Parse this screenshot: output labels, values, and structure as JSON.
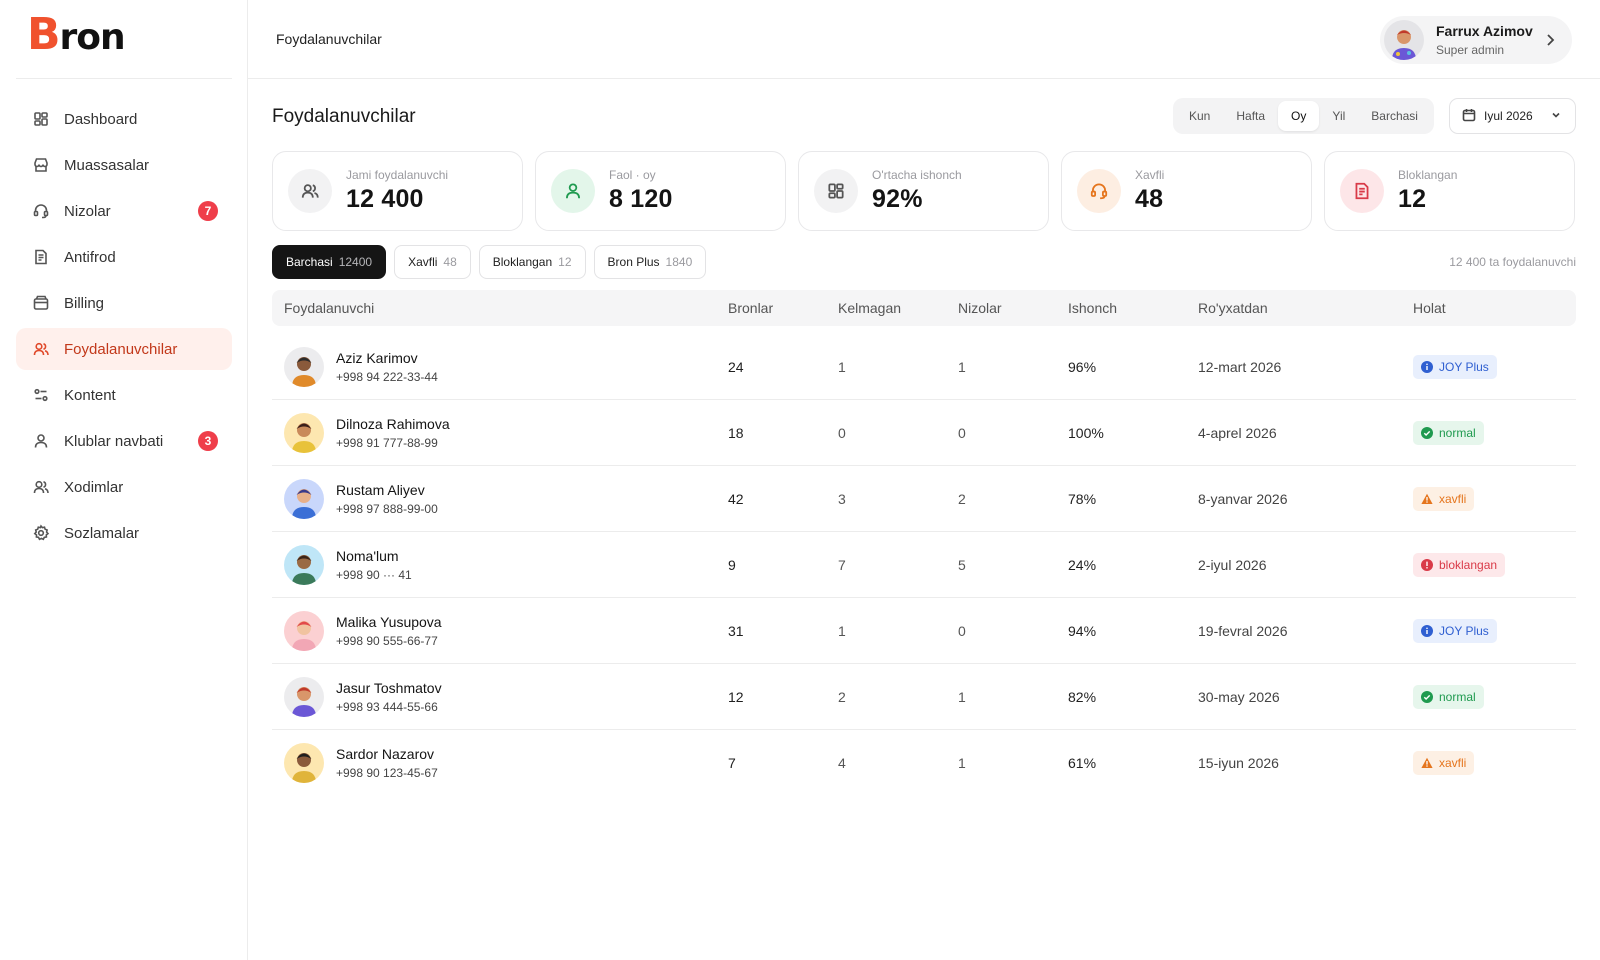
{
  "brand": {
    "logo_text": "ron",
    "logo_initial": "B",
    "accent": "#f0522e"
  },
  "sidebar": {
    "items": [
      {
        "label": "Dashboard",
        "icon": "grid-icon",
        "badge": ""
      },
      {
        "label": "Muassasalar",
        "icon": "store-icon",
        "badge": ""
      },
      {
        "label": "Nizolar",
        "icon": "headset-icon",
        "badge": "7"
      },
      {
        "label": "Antifrod",
        "icon": "document-icon",
        "badge": ""
      },
      {
        "label": "Billing",
        "icon": "wallet-icon",
        "badge": ""
      },
      {
        "label": "Foydalanuvchilar",
        "icon": "users-icon",
        "badge": "",
        "active": true
      },
      {
        "label": "Kontent",
        "icon": "sliders-icon",
        "badge": ""
      },
      {
        "label": "Klublar navbati",
        "icon": "user-icon",
        "badge": "3"
      },
      {
        "label": "Xodimlar",
        "icon": "users-icon",
        "badge": ""
      },
      {
        "label": "Sozlamalar",
        "icon": "gear-icon",
        "badge": ""
      }
    ]
  },
  "header": {
    "title": "Foydalanuvchilar",
    "user": {
      "name": "Farrux Azimov",
      "role": "Super admin"
    }
  },
  "main": {
    "title": "Foydalanuvchilar",
    "periods": [
      "Kun",
      "Hafta",
      "Oy",
      "Yil",
      "Barchasi"
    ],
    "active_period": "Oy",
    "date_label": "Iyul 2026",
    "stats": [
      {
        "label": "Jami foydalanuvchi",
        "value": "12 400",
        "icon": "users-icon",
        "bg": "#f2f2f3",
        "color": "#555555"
      },
      {
        "label": "Faol · oy",
        "value": "8 120",
        "icon": "user-icon",
        "bg": "#e3f6ea",
        "color": "#1f9a4f"
      },
      {
        "label": "O'rtacha ishonch",
        "value": "92%",
        "icon": "grid-icon",
        "bg": "#f2f2f3",
        "color": "#555555"
      },
      {
        "label": "Xavfli",
        "value": "48",
        "icon": "headset-icon",
        "bg": "#fdeee2",
        "color": "#e5751d"
      },
      {
        "label": "Bloklangan",
        "value": "12",
        "icon": "document-icon",
        "bg": "#fde6e8",
        "color": "#d93a48"
      }
    ],
    "filters": [
      {
        "label": "Barchasi",
        "count": "12400",
        "active": true
      },
      {
        "label": "Xavfli",
        "count": "48"
      },
      {
        "label": "Bloklangan",
        "count": "12"
      },
      {
        "label": "Bron Plus",
        "count": "1840"
      }
    ],
    "total_text": "12 400 ta foydalanuvchi",
    "table": {
      "columns": [
        "Foydalanuvchi",
        "Bronlar",
        "Kelmagan",
        "Nizolar",
        "Ishonch",
        "Ro'yxatdan",
        "Holat"
      ],
      "rows": [
        {
          "name": "Aziz Karimov",
          "phone": "+998 94 222-33-44",
          "bookings": "24",
          "no_show": "1",
          "disputes": "1",
          "trust": "96%",
          "registered": "12-mart 2026",
          "status": "JOY Plus",
          "status_type": "info",
          "avatar_bg": "#ececee"
        },
        {
          "name": "Dilnoza Rahimova",
          "phone": "+998 91 777-88-99",
          "bookings": "18",
          "no_show": "0",
          "disputes": "0",
          "trust": "100%",
          "registered": "4-aprel 2026",
          "status": "normal",
          "status_type": "ok",
          "avatar_bg": "#fde7b0"
        },
        {
          "name": "Rustam Aliyev",
          "phone": "+998 97 888-99-00",
          "bookings": "42",
          "no_show": "3",
          "disputes": "2",
          "trust": "78%",
          "registered": "8-yanvar 2026",
          "status": "xavfli",
          "status_type": "warn",
          "avatar_bg": "#c9d7fb"
        },
        {
          "name": "Noma'lum",
          "phone": "+998 90 ··· 41",
          "bookings": "9",
          "no_show": "7",
          "disputes": "5",
          "trust": "24%",
          "registered": "2-iyul 2026",
          "status": "bloklangan",
          "status_type": "block",
          "avatar_bg": "#bfe6f7"
        },
        {
          "name": "Malika Yusupova",
          "phone": "+998 90 555-66-77",
          "bookings": "31",
          "no_show": "1",
          "disputes": "0",
          "trust": "94%",
          "registered": "19-fevral 2026",
          "status": "JOY Plus",
          "status_type": "info",
          "avatar_bg": "#fbd0d2"
        },
        {
          "name": "Jasur Toshmatov",
          "phone": "+998 93 444-55-66",
          "bookings": "12",
          "no_show": "2",
          "disputes": "1",
          "trust": "82%",
          "registered": "30-may 2026",
          "status": "normal",
          "status_type": "ok",
          "avatar_bg": "#ececee"
        },
        {
          "name": "Sardor Nazarov",
          "phone": "+998 90 123-45-67",
          "bookings": "7",
          "no_show": "4",
          "disputes": "1",
          "trust": "61%",
          "registered": "15-iyun 2026",
          "status": "xavfli",
          "status_type": "warn",
          "avatar_bg": "#fde7b0"
        }
      ]
    }
  }
}
